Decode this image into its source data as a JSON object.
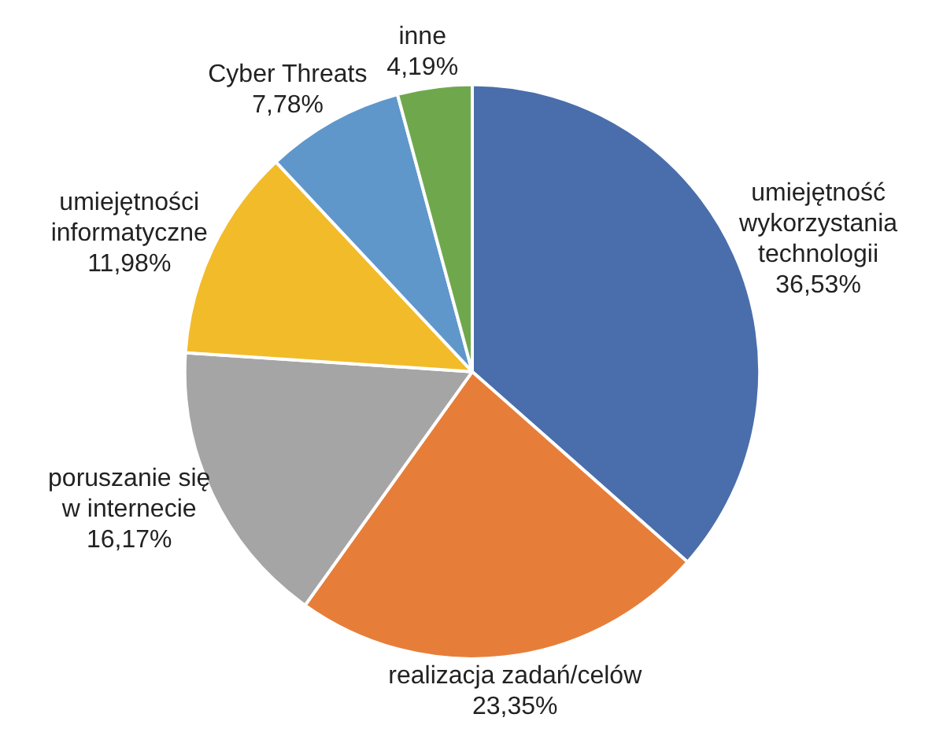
{
  "chart_data": {
    "type": "pie",
    "categories": [
      "umiejętność\nwykorzystania\ntechnologii",
      "realizacja zadań/celów",
      "poruszanie się\nw internecie",
      "umiejętności\ninformatyczne",
      "Cyber Threats",
      "inne"
    ],
    "values": [
      36.53,
      23.35,
      16.17,
      11.98,
      7.78,
      4.19
    ],
    "value_labels": [
      "36,53%",
      "23,35%",
      "16,17%",
      "11,98%",
      "7,78%",
      "4,19%"
    ],
    "colors": [
      "#4a6eab",
      "#e67e39",
      "#a5a5a5",
      "#f2bb2a",
      "#5f97cb",
      "#6fa84c"
    ],
    "legend": false
  }
}
